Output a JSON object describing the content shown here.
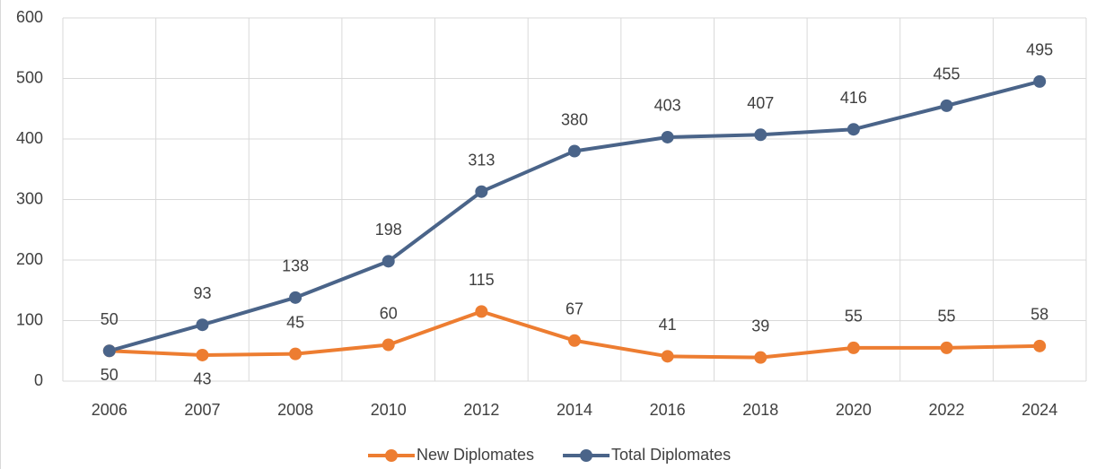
{
  "chart_data": {
    "type": "line",
    "categories": [
      "2006",
      "2007",
      "2008",
      "2010",
      "2012",
      "2014",
      "2016",
      "2018",
      "2020",
      "2022",
      "2024"
    ],
    "series": [
      {
        "name": "New Diplomates",
        "color": "#ed7d31",
        "values": [
          50,
          43,
          45,
          60,
          115,
          67,
          41,
          39,
          55,
          55,
          58
        ]
      },
      {
        "name": "Total Diplomates",
        "color": "#4a6489",
        "values": [
          50,
          93,
          138,
          198,
          313,
          380,
          403,
          407,
          416,
          455,
          495
        ]
      }
    ],
    "ylim": [
      0,
      600
    ],
    "yticks": [
      0,
      100,
      200,
      300,
      400,
      500,
      600
    ],
    "grid": true,
    "legend": "bottom"
  }
}
